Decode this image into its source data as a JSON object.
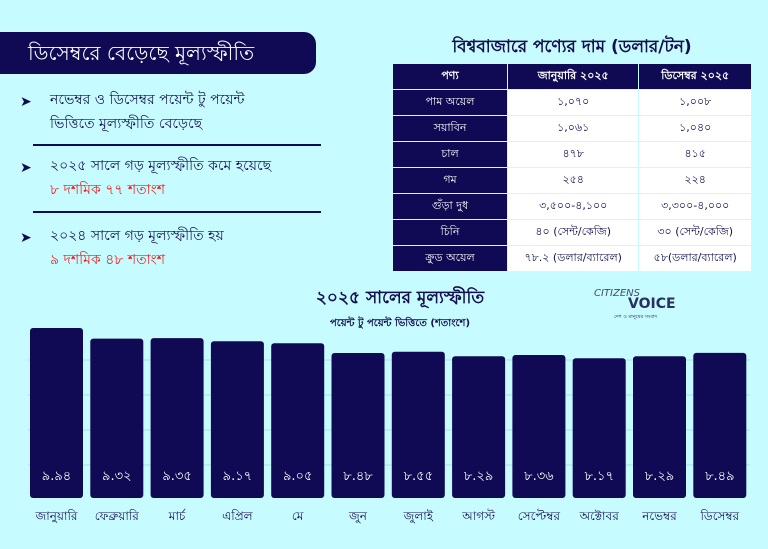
{
  "headline": "ডিসেম্বরে বেড়েছে মূল্যস্ফীতি",
  "bullets": [
    {
      "line1": "নভেম্বর ও ডিসেম্বর পয়েন্ট টু পয়েন্ট",
      "line2": "ভিত্তিতে মূল্যস্ফীতি বেড়েছে"
    },
    {
      "line1": "২০২৫ সালে গড় মূল্যস্ফীতি কমে হয়েছে",
      "line2": "৮ দশমিক ৭৭ শতাংশ"
    },
    {
      "line1": "২০২৪ সালে গড় মূল্যস্ফীতি হয়",
      "line2": "৯ দশমিক ৪৮ শতাংশ"
    }
  ],
  "price_table": {
    "title": "বিশ্ববাজারে পণ্যের দাম (ডলার/টন)",
    "headers": [
      "পণ্য",
      "জানুয়ারি ২০২৫",
      "ডিসেম্বর ২০২৫"
    ],
    "rows": [
      [
        "পাম অয়েল",
        "১,০৭০",
        "১,০০৮"
      ],
      [
        "সয়াবিন",
        "১,০৬১",
        "১,০৪০"
      ],
      [
        "চাল",
        "৪৭৮",
        "৪১৫"
      ],
      [
        "গম",
        "২৫৪",
        "২২৪"
      ],
      [
        "গুঁড়া দুধ",
        "৩,৫০০-৪,১০০",
        "৩,৩০০-৪,০০০"
      ],
      [
        "চিনি",
        "৪০ (সেন্ট/কেজি)",
        "৩০ (সেন্ট/কেজি)"
      ],
      [
        "ক্রুড অয়েল",
        "৭৮.২ (ডলার/ব্যারেল)",
        "৫৮(ডলার/ব্যারেল)"
      ]
    ]
  },
  "logo": {
    "line1": "CITIZENS",
    "line2": "VOICE",
    "tagline": "দেশ ও মানুষের সংবাদ"
  },
  "colors": {
    "background": "#c6fbff",
    "navy": "#100a55",
    "red": "#f0201f"
  },
  "chart_data": {
    "type": "bar",
    "title": "২০২৫ সালের মূল্যস্ফীতি",
    "subtitle": "পয়েন্ট টু পয়েন্ট ভিত্তিতে (শতাংশে)",
    "categories": [
      "জানুয়ারি",
      "ফেব্রুয়ারি",
      "মার্চ",
      "এপ্রিল",
      "মে",
      "জুন",
      "জুলাই",
      "আগস্ট",
      "সেপ্টেম্বর",
      "অক্টোবর",
      "নভেম্বর",
      "ডিসেম্বর"
    ],
    "values": [
      9.94,
      9.32,
      9.35,
      9.17,
      9.05,
      8.48,
      8.55,
      8.29,
      8.36,
      8.17,
      8.29,
      8.49
    ],
    "labels": [
      "৯.৯৪",
      "৯.৩২",
      "৯.৩৫",
      "৯.১৭",
      "৯.০৫",
      "৮.৪৮",
      "৮.৫৫",
      "৮.২৯",
      "৮.৩৬",
      "৮.১৭",
      "৮.২৯",
      "৮.৪৯"
    ],
    "ylim": [
      0,
      10
    ],
    "bar_color": "#100a55"
  }
}
